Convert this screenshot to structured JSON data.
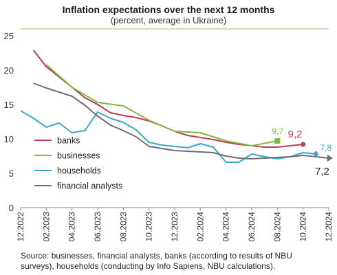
{
  "header": {
    "title": "Inflation expectations over the next 12 months",
    "subtitle": "(percent, average in Ukraine)"
  },
  "footer": {
    "source": "Source: businesses, financial analysts, banks (according to results of NBU surveys), households (conducting  by Info Sapiens, NBU calculations)."
  },
  "chart_data": {
    "type": "line",
    "title": "Inflation expectations over the next 12 months",
    "subtitle": "(percent, average in Ukraine)",
    "xlabel": "",
    "ylabel": "",
    "ylim": [
      0,
      25
    ],
    "yticks": [
      0,
      5,
      10,
      15,
      20,
      25
    ],
    "xticks": [
      "12.2022",
      "02.2023",
      "04.2023",
      "06.2023",
      "08.2023",
      "10.2023",
      "12.2023",
      "02.2024",
      "04.2024",
      "06.2024",
      "08.2024",
      "10.2024",
      "12.2024"
    ],
    "x": [
      "12.2022",
      "01.2023",
      "02.2023",
      "03.2023",
      "04.2023",
      "05.2023",
      "06.2023",
      "07.2023",
      "08.2023",
      "09.2023",
      "10.2023",
      "11.2023",
      "12.2023",
      "01.2024",
      "02.2024",
      "03.2024",
      "04.2024",
      "05.2024",
      "06.2024",
      "07.2024",
      "08.2024",
      "09.2024",
      "10.2024",
      "11.2024",
      "12.2024"
    ],
    "grid": false,
    "legend": "bottom-left",
    "series": [
      {
        "name": "banks",
        "color": "#c0385a",
        "values": [
          null,
          22.9,
          20.5,
          19.0,
          17.5,
          16.0,
          15.0,
          13.8,
          13.4,
          13.1,
          12.6,
          11.9,
          11.1,
          10.5,
          10.2,
          9.9,
          9.5,
          9.2,
          9.0,
          8.8,
          8.8,
          9.0,
          9.2,
          null,
          null
        ],
        "end_label": "9,2",
        "end_marker": "circle"
      },
      {
        "name": "businesses",
        "color": "#7fba3a",
        "values": [
          null,
          null,
          20.8,
          null,
          17.5,
          null,
          15.3,
          null,
          14.8,
          null,
          12.7,
          null,
          11.1,
          null,
          10.9,
          null,
          9.7,
          null,
          9.0,
          null,
          9.7,
          null,
          null,
          null,
          null
        ],
        "end_label": "9,7",
        "end_marker": "square"
      },
      {
        "name": "households",
        "color": "#3ea6cc",
        "values": [
          14.1,
          13.0,
          11.7,
          12.3,
          10.9,
          11.2,
          13.9,
          13.0,
          12.4,
          11.3,
          9.5,
          9.1,
          8.9,
          8.7,
          9.3,
          8.8,
          6.6,
          6.6,
          7.8,
          7.4,
          7.1,
          7.4,
          8.0,
          7.8,
          null
        ],
        "end_label": "7,8",
        "end_marker": "diamond"
      },
      {
        "name": "financial analysts",
        "color": "#6e6e6e",
        "values": [
          null,
          18.1,
          17.4,
          16.8,
          16.2,
          14.9,
          13.3,
          12.0,
          11.2,
          10.3,
          8.9,
          8.6,
          8.3,
          8.2,
          8.1,
          8.0,
          7.5,
          7.2,
          7.1,
          7.2,
          7.3,
          7.4,
          7.6,
          7.4,
          7.2
        ],
        "end_label": "7,2",
        "end_marker": "triangle"
      }
    ]
  }
}
